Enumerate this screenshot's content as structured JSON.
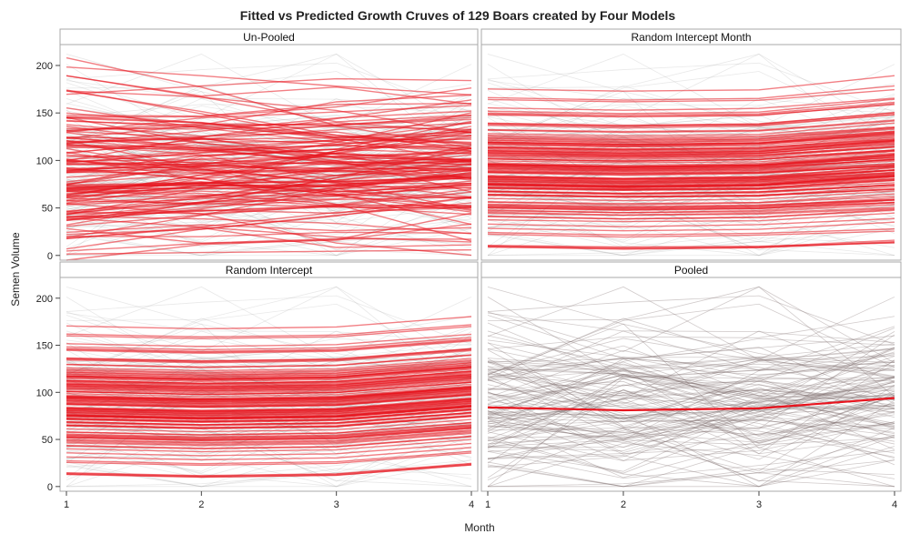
{
  "chart_data": {
    "type": "line",
    "title": "Fitted vs Predicted Growth Cruves of 129 Boars created by Four Models",
    "xlabel": "Month",
    "ylabel": "Semen Volume",
    "x": [
      1,
      2,
      3,
      4
    ],
    "x_ticks": [
      "1",
      "2",
      "3",
      "4"
    ],
    "y_ticks": [
      "0",
      "50",
      "100",
      "150",
      "200"
    ],
    "xlim": [
      1,
      4
    ],
    "ylim": [
      -5,
      222
    ],
    "n_subjects": 129,
    "colors": {
      "fitted": "#e8141e",
      "observed": "#9a9a9a",
      "frame": "#a8a8a8",
      "strip_bg": "#ffffff"
    },
    "panels": [
      {
        "label": "Un-Pooled",
        "model": "unpooled"
      },
      {
        "label": "Random Intercept Month",
        "model": "random_intercept_month"
      },
      {
        "label": "Random Intercept",
        "model": "random_intercept"
      },
      {
        "label": "Pooled",
        "model": "pooled",
        "fitted": [
          84,
          81,
          83,
          94
        ]
      }
    ]
  }
}
